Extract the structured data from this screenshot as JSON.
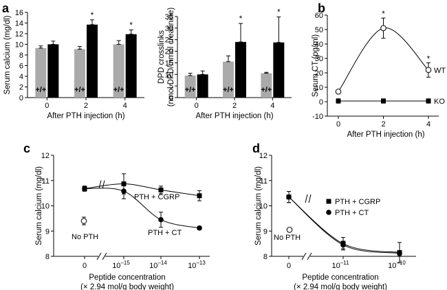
{
  "chart_data": [
    {
      "panel": "a",
      "type": "bar",
      "ylabel": "Serum calcium (mg/dl)",
      "xlabel": "After PTH injection (h)",
      "ylim": [
        0,
        16
      ],
      "yticks": [
        "0",
        "2",
        "4",
        "6",
        "8",
        "10",
        "12",
        "14",
        "16"
      ],
      "categories": [
        "0",
        "2",
        "4"
      ],
      "series": [
        {
          "name": "+/+",
          "color": "#aaaaaa",
          "values": [
            9.3,
            9.1,
            10.0
          ],
          "errors": [
            0.4,
            0.5,
            0.7
          ]
        },
        {
          "name": "-/-",
          "color": "#000000",
          "values": [
            10.0,
            13.7,
            11.9
          ],
          "errors": [
            0.6,
            0.9,
            0.8
          ]
        }
      ],
      "bar_labels": [
        "+/+",
        "-/-"
      ],
      "asterisk": "*",
      "significant": [
        false,
        true,
        true
      ]
    },
    {
      "panel": "a2",
      "type": "bar",
      "ylabel": "DPD crosslinks",
      "ylabel2": "(nmol DPD/mmol creatinine)",
      "xlabel": "After PTH injection (h)",
      "ylim": [
        0,
        35
      ],
      "yticks": [
        "0",
        "5",
        "10",
        "15",
        "20",
        "25",
        "30",
        "35"
      ],
      "categories": [
        "0",
        "2",
        "4"
      ],
      "series": [
        {
          "name": "+/+",
          "color": "#aaaaaa",
          "values": [
            9.5,
            15.5,
            10.5
          ],
          "errors": [
            1.0,
            2.5,
            0.4
          ]
        },
        {
          "name": "-/-",
          "color": "#000000",
          "values": [
            10.0,
            24.0,
            23.8
          ],
          "errors": [
            1.5,
            8.0,
            11.0
          ]
        }
      ],
      "bar_labels": [
        "+/+",
        "-/-"
      ],
      "asterisk": "*",
      "significant": [
        false,
        true,
        true
      ]
    },
    {
      "panel": "b",
      "type": "line",
      "ylabel": "Serum CT (pg/ml)",
      "xlabel": "After PTH injection (h)",
      "ylim": [
        -10,
        60
      ],
      "yticks": [
        "-10",
        "0",
        "10",
        "20",
        "30",
        "40",
        "50",
        "60"
      ],
      "xticks": [
        "0",
        "2",
        "4"
      ],
      "series": [
        {
          "name": "WT",
          "marker": "open-circle",
          "x": [
            0,
            2,
            4
          ],
          "y": [
            7,
            51,
            22
          ],
          "errors": [
            0,
            7,
            5
          ]
        },
        {
          "name": "KO",
          "marker": "filled-square",
          "x": [
            0,
            2,
            4
          ],
          "y": [
            0.5,
            0.5,
            0.5
          ],
          "errors": [
            1.5,
            1.5,
            1.5
          ]
        }
      ],
      "asterisk": "*",
      "significant_x": [
        2,
        4
      ]
    },
    {
      "panel": "c",
      "type": "line",
      "ylabel": "Serum calcium (mg/dl)",
      "xlabel": "Peptide concentration",
      "xlabel2": "(× 2.94 mol/g body weight)",
      "ylim": [
        8,
        12
      ],
      "yticks": [
        "8",
        "9",
        "10",
        "11",
        "12"
      ],
      "xticks": [
        {
          "base": "0",
          "exp": ""
        },
        {
          "base": "10",
          "exp": "–15"
        },
        {
          "base": "10",
          "exp": "–14"
        },
        {
          "base": "10",
          "exp": "–13"
        }
      ],
      "series": [
        {
          "name": "PTH + CGRP",
          "marker": "filled-square",
          "x": [
            0,
            1,
            2,
            3
          ],
          "y": [
            10.68,
            10.87,
            10.63,
            10.4
          ],
          "errors": [
            0.1,
            0.4,
            0.15,
            0.2
          ]
        },
        {
          "name": "PTH + CT",
          "marker": "filled-circle",
          "x": [
            0,
            1,
            2,
            3
          ],
          "y": [
            10.68,
            10.58,
            9.45,
            9.12
          ],
          "errors": [
            0.1,
            0.3,
            0.3,
            0.07
          ]
        }
      ],
      "no_pth": {
        "label": "No PTH",
        "y": 9.4,
        "error": 0.15
      }
    },
    {
      "panel": "d",
      "type": "line",
      "ylabel": "Serum calcium (mg/dl)",
      "xlabel": "Peptide concentration",
      "xlabel2": "(× 2.94 mol/g body weight)",
      "ylim": [
        8,
        12
      ],
      "yticks": [
        "8",
        "9",
        "10",
        "11",
        "12"
      ],
      "xticks": [
        {
          "base": "0",
          "exp": ""
        },
        {
          "base": "10",
          "exp": "–11"
        },
        {
          "base": "10",
          "exp": "–10"
        }
      ],
      "series": [
        {
          "name": "PTH + CGRP",
          "marker": "filled-square",
          "x": [
            0,
            1,
            2
          ],
          "y": [
            10.35,
            8.5,
            8.15
          ],
          "errors": [
            0.22,
            0.25,
            0.4
          ]
        },
        {
          "name": "PTH + CT",
          "marker": "filled-circle",
          "x": [
            0,
            1,
            2
          ],
          "y": [
            10.35,
            8.45,
            8.12
          ],
          "errors": [
            0.22,
            0.15,
            0.1
          ]
        }
      ],
      "no_pth": {
        "label": "No PTH",
        "y": 9.05,
        "error": 0.07
      }
    }
  ]
}
